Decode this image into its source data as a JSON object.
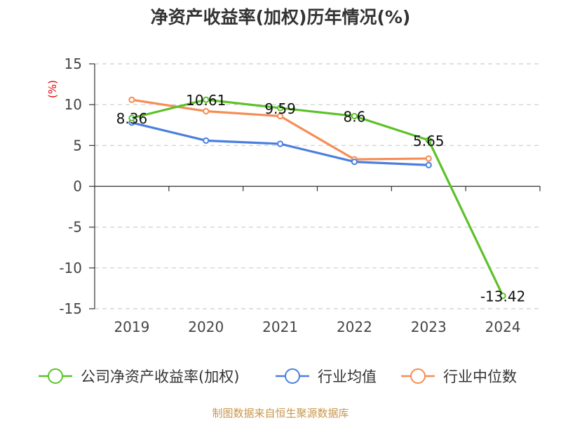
{
  "chart_data": {
    "type": "line",
    "title": "净资产收益率(加权)历年情况(%)",
    "unit_label": "(%)",
    "categories": [
      "2019",
      "2020",
      "2021",
      "2022",
      "2023",
      "2024"
    ],
    "ylim": [
      -15,
      15
    ],
    "yticks": [
      -15,
      -10,
      -5,
      0,
      5,
      10,
      15
    ],
    "grid": true,
    "legend_position": "bottom",
    "series": [
      {
        "name": "公司净资产收益率(加权)",
        "color": "#5cc12a",
        "values": [
          8.36,
          10.61,
          9.59,
          8.6,
          5.65,
          -13.42
        ],
        "labels": [
          "8.36",
          "10.61",
          "9.59",
          "8.6",
          "5.65",
          "-13.42"
        ]
      },
      {
        "name": "行业均值",
        "color": "#4a7fe0",
        "values": [
          7.8,
          5.6,
          5.2,
          3.0,
          2.6,
          null
        ]
      },
      {
        "name": "行业中位数",
        "color": "#f58d55",
        "values": [
          10.6,
          9.2,
          8.6,
          3.3,
          3.4,
          null
        ]
      }
    ]
  },
  "footer": {
    "source": "制图数据来自恒生聚源数据库"
  }
}
